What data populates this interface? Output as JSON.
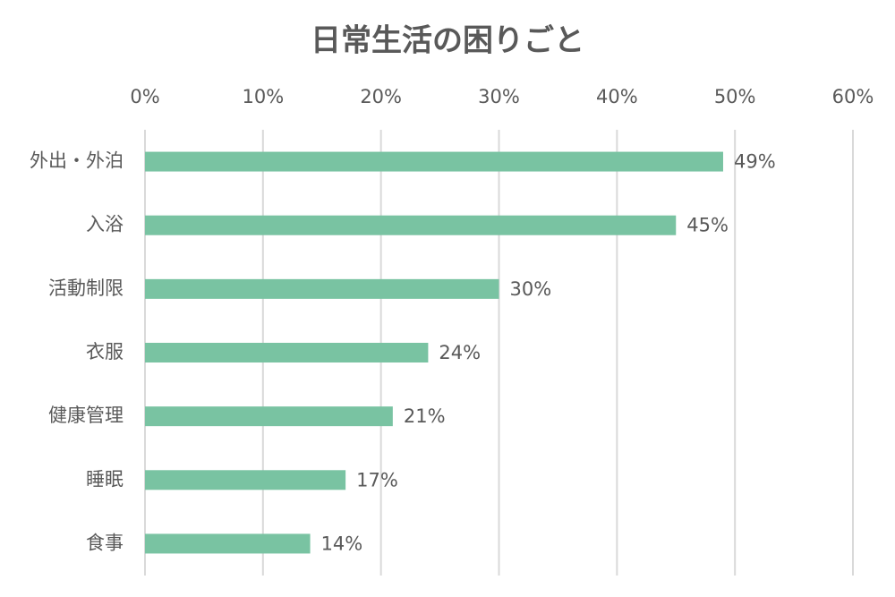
{
  "chart_data": {
    "type": "bar",
    "orientation": "horizontal",
    "title": "日常生活の困りごと",
    "categories": [
      "外出・外泊",
      "入浴",
      "活動制限",
      "衣服",
      "健康管理",
      "睡眠",
      "食事"
    ],
    "values": [
      49,
      45,
      30,
      24,
      21,
      17,
      14
    ],
    "value_labels": [
      "49%",
      "45%",
      "30%",
      "24%",
      "21%",
      "17%",
      "14%"
    ],
    "color": "#79c3a2",
    "xlim": [
      0,
      60
    ],
    "xticks": [
      {
        "value": 0,
        "label": "0%"
      },
      {
        "value": 10,
        "label": "10%"
      },
      {
        "value": 20,
        "label": "20%"
      },
      {
        "value": 30,
        "label": "30%"
      },
      {
        "value": 40,
        "label": "40%"
      },
      {
        "value": 50,
        "label": "50%"
      },
      {
        "value": 60,
        "label": "60%"
      }
    ],
    "grid": true
  }
}
